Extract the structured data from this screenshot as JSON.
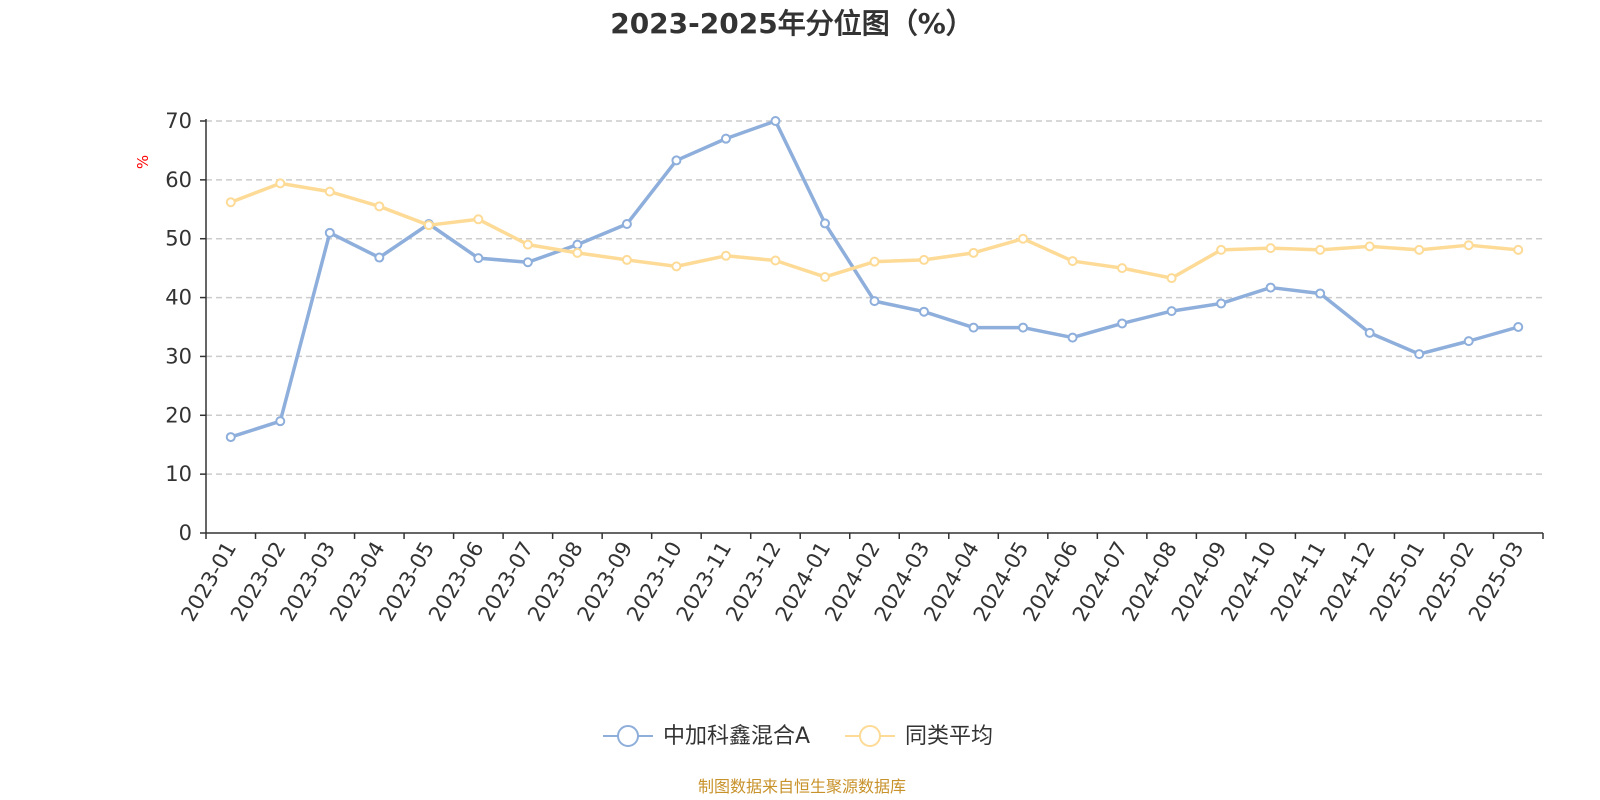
{
  "chart_data": {
    "type": "line",
    "title": "2023-2025年分位图（%）",
    "ylabel": "%",
    "ylim": [
      0,
      70
    ],
    "yticks": [
      0,
      10,
      20,
      30,
      40,
      50,
      60,
      70
    ],
    "grid": true,
    "legend_position": "bottom",
    "categories": [
      "2023-01",
      "2023-02",
      "2023-03",
      "2023-04",
      "2023-05",
      "2023-06",
      "2023-07",
      "2023-08",
      "2023-09",
      "2023-10",
      "2023-11",
      "2023-12",
      "2024-01",
      "2024-02",
      "2024-03",
      "2024-04",
      "2024-05",
      "2024-06",
      "2024-07",
      "2024-08",
      "2024-09",
      "2024-10",
      "2024-11",
      "2024-12",
      "2025-01",
      "2025-02",
      "2025-03"
    ],
    "series": [
      {
        "name": "中加科鑫混合A",
        "color": "#8eaedb",
        "values": [
          16.3,
          19.0,
          51.0,
          46.8,
          52.5,
          46.7,
          46.0,
          49.0,
          52.5,
          63.3,
          67.0,
          70.0,
          52.6,
          39.4,
          37.6,
          34.9,
          34.9,
          33.2,
          35.6,
          37.7,
          39.0,
          41.7,
          40.7,
          34.0,
          30.4,
          32.6,
          35.0
        ]
      },
      {
        "name": "同类平均",
        "color": "#fddb97",
        "values": [
          56.2,
          59.4,
          58.0,
          55.5,
          52.3,
          53.3,
          49.0,
          47.6,
          46.4,
          45.3,
          47.1,
          46.3,
          43.5,
          46.1,
          46.4,
          47.6,
          50.0,
          46.2,
          45.0,
          43.3,
          48.1,
          48.4,
          48.1,
          48.7,
          48.1,
          48.9,
          48.1
        ]
      }
    ],
    "axis_color": "#333333",
    "grid_color": "#cccccc",
    "unit_color": "#ff0000"
  },
  "footer": {
    "source_text": "制图数据来自恒生聚源数据库",
    "source_color": "#c8922b"
  }
}
